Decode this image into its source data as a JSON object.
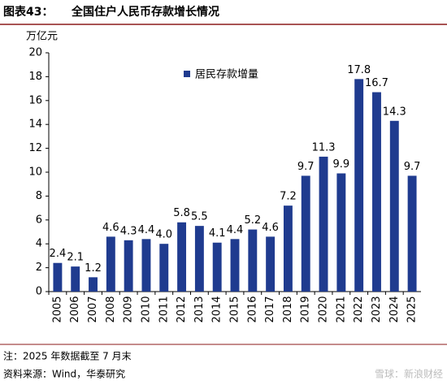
{
  "chart_data": {
    "type": "bar",
    "title_prefix": "图表43：",
    "title": "全国住户人民币存款增长情况",
    "y_unit": "万亿元",
    "categories": [
      "2005",
      "2006",
      "2007",
      "2008",
      "2009",
      "2010",
      "2011",
      "2012",
      "2013",
      "2014",
      "2015",
      "2016",
      "2017",
      "2018",
      "2019",
      "2020",
      "2021",
      "2022",
      "2023",
      "2024",
      "2025"
    ],
    "series": [
      {
        "name": "居民存款增量",
        "color": "#1f3b8f",
        "values": [
          2.4,
          2.1,
          1.2,
          4.6,
          4.3,
          4.4,
          4.0,
          5.8,
          5.5,
          4.1,
          4.4,
          5.2,
          4.6,
          7.2,
          9.7,
          11.3,
          9.9,
          17.8,
          16.7,
          14.3,
          9.7
        ],
        "value_labels": [
          "2.4",
          "2.1",
          "1.2",
          "4.6",
          "4.3",
          "4.4",
          "4.0",
          "5.8",
          "5.5",
          "4.1",
          "4.4",
          "5.2",
          "4.6",
          "7.2",
          "9.7",
          "11.3",
          "9.9",
          "17.8",
          "16.7",
          "14.3",
          "9.7"
        ]
      }
    ],
    "ylim": [
      0,
      20
    ],
    "yticks": [
      0,
      2,
      4,
      6,
      8,
      10,
      12,
      14,
      16,
      18,
      20
    ],
    "note": "注：2025 年数据截至 7 月末",
    "source": "资料来源：Wind，华泰研究",
    "watermark": "雪球：新浪财经"
  }
}
